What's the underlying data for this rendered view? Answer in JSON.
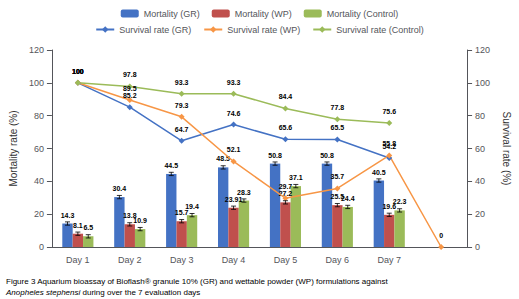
{
  "chart_data": {
    "type": "bar",
    "categories": [
      "Day 1",
      "Day 2",
      "Day 3",
      "Day 4",
      "Day 5",
      "Day 6",
      "Day 7",
      null
    ],
    "series": [
      {
        "name": "Mortality (GR)",
        "type": "bar",
        "color": "#4472C4",
        "values": [
          14.3,
          30.4,
          44.5,
          48.5,
          50.8,
          50.8,
          40.5,
          null
        ],
        "error": [
          1.0,
          1.0,
          1.0,
          1.0,
          1.0,
          1.0,
          1.0,
          null
        ]
      },
      {
        "name": "Mortality (WP)",
        "type": "bar",
        "color": "#C0504D",
        "values": [
          8.1,
          13.8,
          15.7,
          23.91,
          27.2,
          25.5,
          19.6,
          null
        ],
        "error": [
          1.0,
          1.0,
          1.0,
          1.0,
          1.0,
          1.0,
          1.0,
          null
        ]
      },
      {
        "name": "Mortality (Control)",
        "type": "bar",
        "color": "#9BBB59",
        "values": [
          6.5,
          10.9,
          19.4,
          28.3,
          37.1,
          24.4,
          22.3,
          null
        ],
        "error": [
          1.0,
          1.0,
          1.0,
          1.0,
          1.0,
          1.0,
          1.0,
          null
        ]
      },
      {
        "name": "Survival rate (GR)",
        "type": "line",
        "axis": "y2",
        "color": "#4472C4",
        "marker": "diamond",
        "values": [
          100,
          85.2,
          64.7,
          74.6,
          65.6,
          65.5,
          54.2,
          null
        ]
      },
      {
        "name": "Survival rate (WP)",
        "type": "line",
        "axis": "y2",
        "color": "#F79646",
        "marker": "diamond",
        "values": [
          100,
          89.5,
          79.3,
          52.1,
          29.7,
          35.7,
          55.8,
          0
        ]
      },
      {
        "name": "Survival rate (Control)",
        "type": "line",
        "axis": "y2",
        "color": "#9BBB59",
        "marker": "diamond",
        "values": [
          100,
          97.8,
          93.3,
          93.3,
          84.4,
          77.8,
          75.6,
          null
        ]
      }
    ],
    "ylabel": "Mortality rate (%)",
    "y2label": "Survival rate (%)",
    "ylim": [
      0,
      120
    ],
    "yticks": [
      0,
      20,
      40,
      60,
      80,
      100,
      120
    ],
    "y2lim": [
      0,
      120
    ],
    "y2ticks": [
      0,
      20,
      40,
      60,
      80,
      100,
      120
    ],
    "grid": false,
    "legend": "top",
    "data_labels": true,
    "caption": [
      "Figure 3 Aquarium bioassay of Bioflash® granule 10% (GR) and wettable powder (WP) formulations against",
      "Anopheles stephensi during over the 7 evaluation days"
    ],
    "caption_italic": "Anopheles stephensi"
  }
}
